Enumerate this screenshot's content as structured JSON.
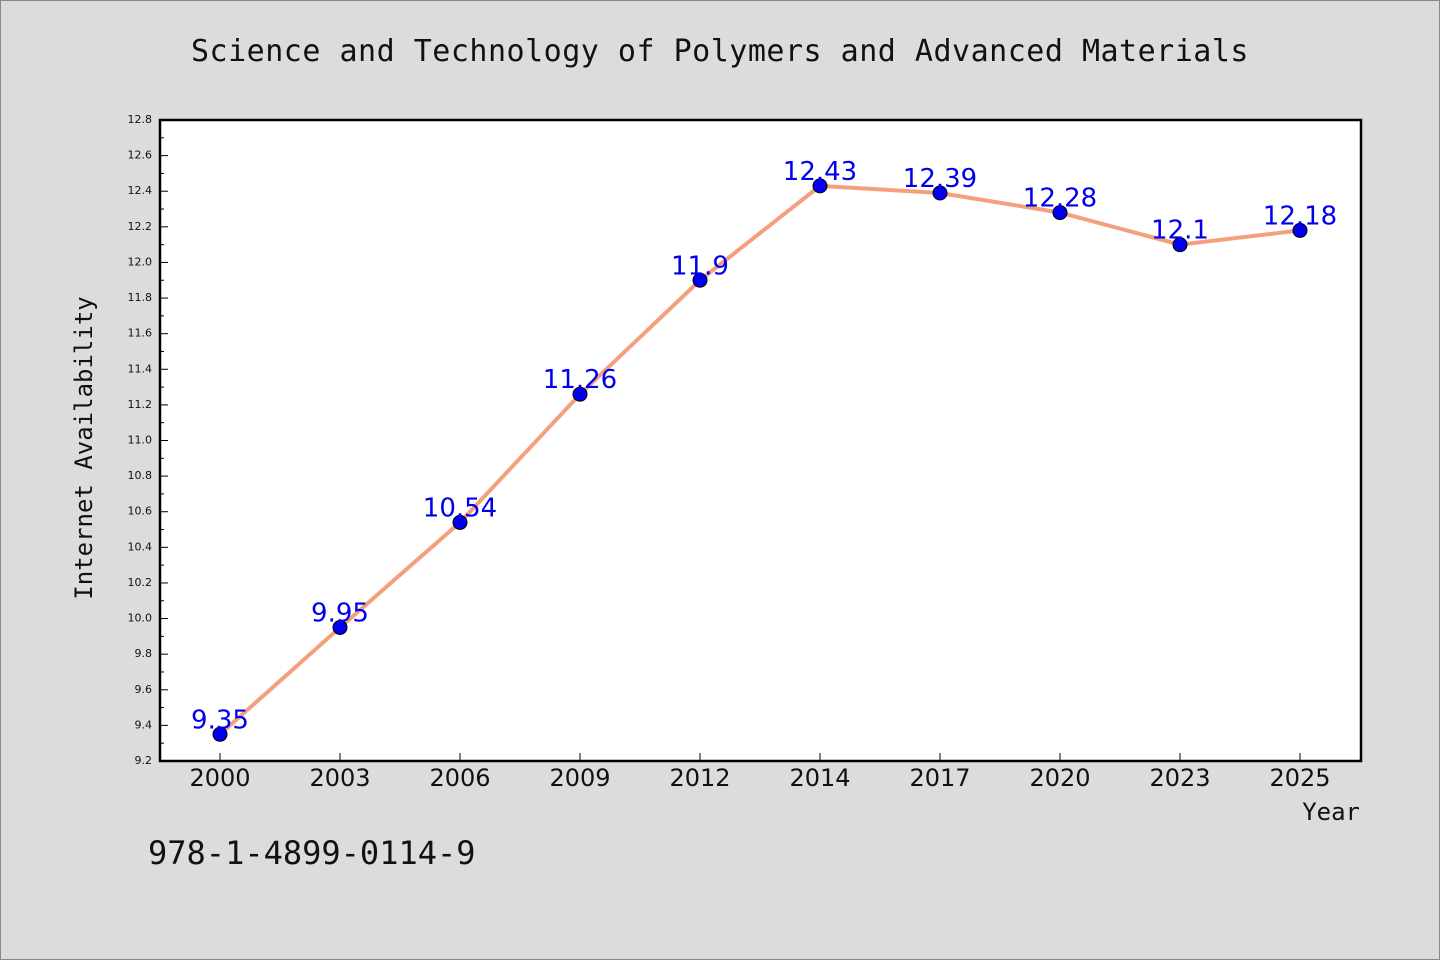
{
  "title": "Science and Technology of Polymers and Advanced Materials",
  "footer_text": "978-1-4899-0114-9",
  "colors": {
    "background": "#dcdcdc",
    "plot_background": "#ffffff",
    "line": "#f4a07d",
    "marker": "#0000ee",
    "data_label": "#0000ee"
  },
  "chart_data": {
    "type": "line",
    "title": "Science and Technology of Polymers and Advanced Materials",
    "xlabel": "Year",
    "ylabel": "Internet Availability",
    "categories": [
      "2000",
      "2003",
      "2006",
      "2009",
      "2012",
      "2014",
      "2017",
      "2020",
      "2023",
      "2025"
    ],
    "series": [
      {
        "values": [
          9.35,
          9.95,
          10.54,
          11.26,
          11.9,
          12.43,
          12.39,
          12.28,
          12.1,
          12.18
        ]
      }
    ],
    "data_labels": [
      "9.35",
      "9.95",
      "10.54",
      "11.26",
      "11.9",
      "12.43",
      "12.39",
      "12.28",
      "12.1",
      "12.18"
    ],
    "ylim": [
      9.2,
      12.8
    ],
    "yticks": [
      "9.2",
      "9.4",
      "9.6",
      "9.8",
      "10.0",
      "10.2",
      "10.4",
      "10.6",
      "10.8",
      "11.0",
      "11.2",
      "11.4",
      "11.6",
      "11.8",
      "12.0",
      "12.2",
      "12.4",
      "12.6",
      "12.8"
    ],
    "grid": false,
    "legend": "none"
  }
}
